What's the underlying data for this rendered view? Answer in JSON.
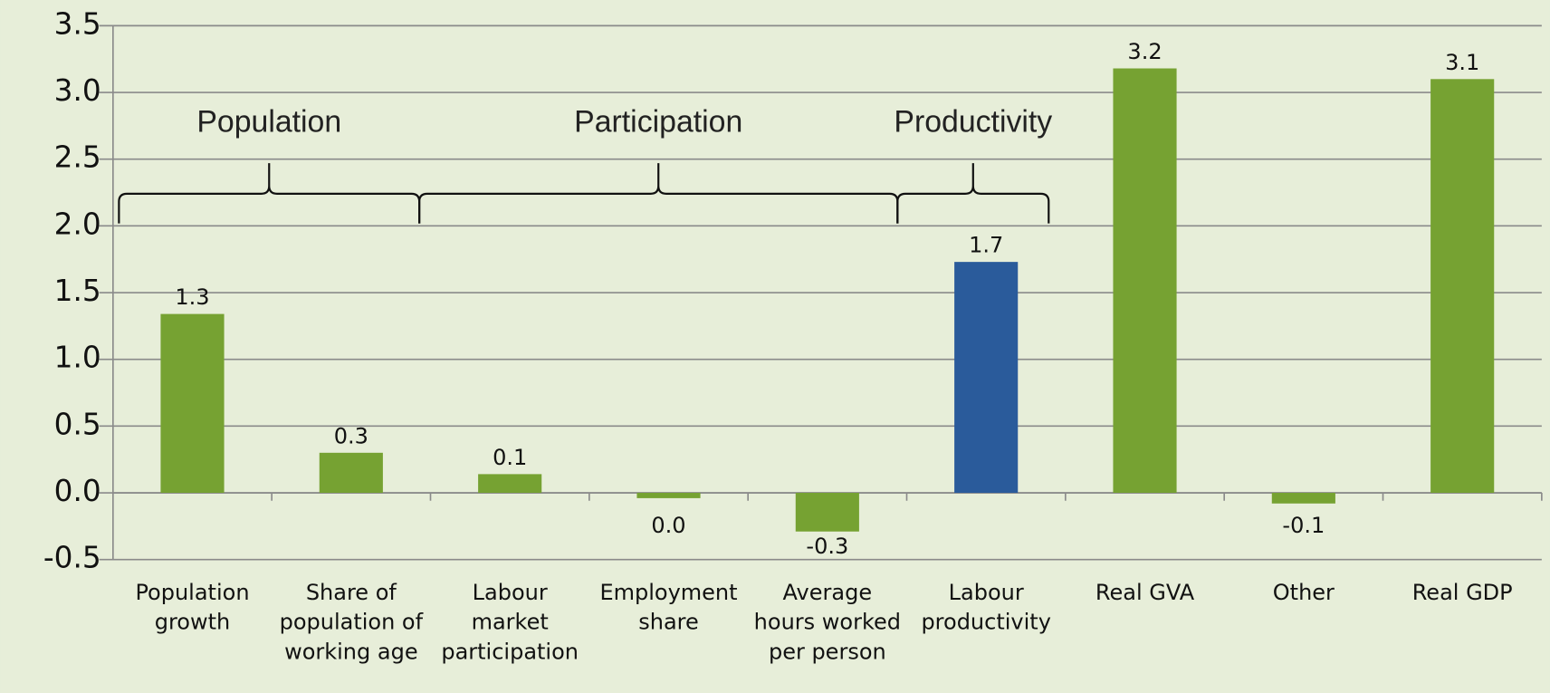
{
  "chart_data": {
    "type": "bar",
    "categories": [
      "Population growth",
      "Share of population of working age",
      "Labour market participation",
      "Employment share",
      "Average hours worked per person",
      "Labour productivity",
      "Real GVA",
      "Other",
      "Real GDP"
    ],
    "values": [
      1.34,
      0.3,
      0.14,
      -0.04,
      -0.29,
      1.73,
      3.18,
      -0.08,
      3.1
    ],
    "value_labels": [
      "1.3",
      "0.3",
      "0.1",
      "0.0",
      "-0.3",
      "1.7",
      "3.2",
      "-0.1",
      "3.1"
    ],
    "colors": [
      "#76a232",
      "#76a232",
      "#76a232",
      "#76a232",
      "#76a232",
      "#2a5b9b",
      "#76a232",
      "#76a232",
      "#76a232"
    ],
    "ylim": [
      -0.5,
      3.5
    ],
    "yticks": [
      -0.5,
      {
        "value": 0,
        "label": "0.0"
      },
      0.5,
      {
        "value": 1,
        "label": "1.0"
      },
      1.5,
      {
        "value": 2,
        "label": "2.0"
      },
      2.5,
      {
        "value": 3,
        "label": "3.0"
      },
      3.5
    ],
    "grid": true,
    "annotations": [
      "Population",
      "Participation",
      "Productivity"
    ]
  }
}
